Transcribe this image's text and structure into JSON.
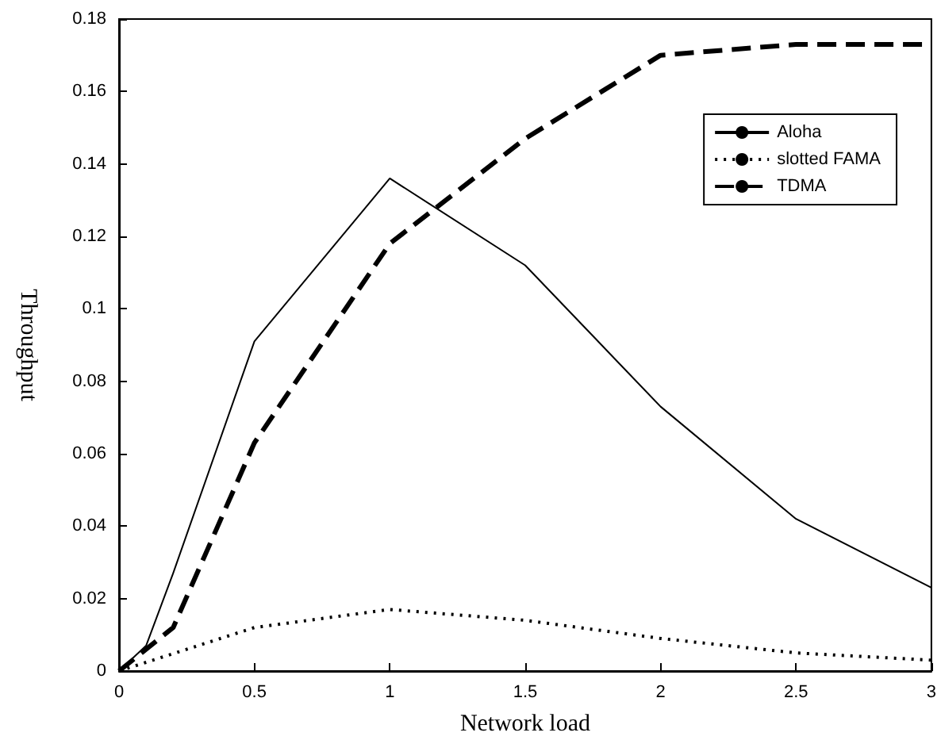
{
  "chart_data": {
    "type": "line",
    "xlabel": "Network load",
    "ylabel": "Throughput",
    "xlim": [
      0,
      3
    ],
    "xticks": [
      0,
      0.5,
      1,
      1.5,
      2,
      2.5,
      3
    ],
    "ylim": [
      0,
      0.18
    ],
    "yticks": [
      0,
      0.02,
      0.04,
      0.06,
      0.08,
      0.1,
      0.12,
      0.14,
      0.16,
      0.18
    ],
    "grid": false,
    "legend": "top right",
    "marker": "none",
    "series": [
      {
        "name": "Aloha",
        "color": "#000000",
        "line_style": "solid",
        "x": [
          0,
          0.1,
          0.2,
          0.5,
          1,
          1.5,
          2,
          2.5,
          3
        ],
        "values": [
          0,
          0.007,
          0.027,
          0.091,
          0.136,
          0.112,
          0.073,
          0.042,
          0.023
        ]
      },
      {
        "name": "slotted FAMA",
        "color": "#000000",
        "line_style": "dotted",
        "x": [
          0,
          0.5,
          1,
          1.5,
          2,
          2.5,
          3
        ],
        "values": [
          0,
          0.012,
          0.017,
          0.014,
          0.009,
          0.005,
          0.003
        ]
      },
      {
        "name": "TDMA",
        "color": "#000000",
        "line_style": "dashed",
        "x": [
          0,
          0.2,
          0.5,
          1,
          1.5,
          2,
          2.5,
          3
        ],
        "values": [
          0,
          0.012,
          0.063,
          0.118,
          0.147,
          0.17,
          0.173,
          0.173
        ]
      }
    ]
  }
}
